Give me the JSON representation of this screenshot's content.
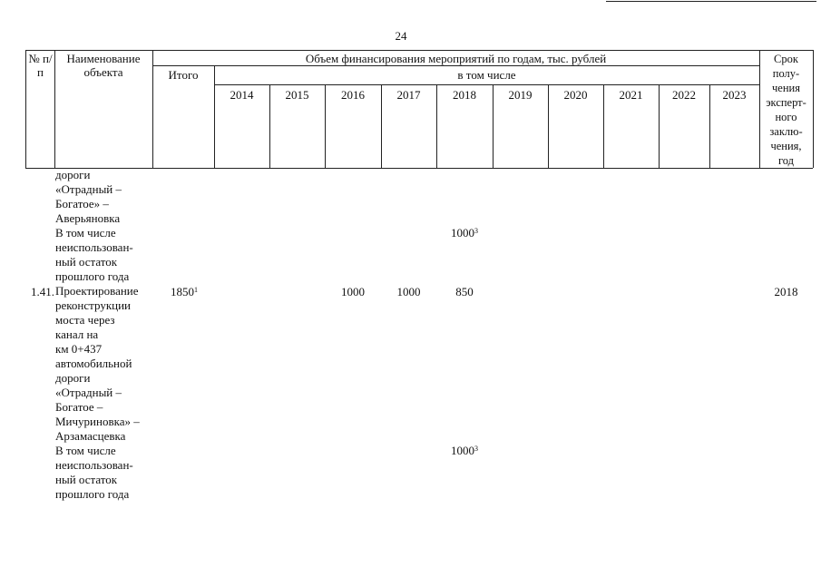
{
  "page_number": "24",
  "header": {
    "no": "№ п/п",
    "name": "Наименование объекта",
    "funding": "Объем финансирования мероприятий по годам, тыс. рублей",
    "total": "Итого",
    "including": "в том числе",
    "years": [
      "2014",
      "2015",
      "2016",
      "2017",
      "2018",
      "2019",
      "2020",
      "2021",
      "2022",
      "2023"
    ],
    "deadline_lines": [
      "Срок",
      "полу-",
      "чения",
      "эксперт-",
      "ного",
      "заклю-",
      "чения,",
      "год"
    ]
  },
  "body": {
    "lines": [
      "дороги",
      "«Отрадный –",
      "Богатое» –",
      "Аверьяновка",
      "В том числе",
      "неиспользован-",
      "ный остаток",
      "прошлого года",
      "Проектирование",
      "реконструкции",
      "моста через",
      "канал на",
      "км 0+437",
      "автомобильной",
      "дороги",
      "«Отрадный –",
      "Богатое –",
      "Мичуриновка» –",
      "Арзамасцевка",
      "В том числе",
      "неиспользован-",
      "ный остаток",
      "прошлого года"
    ],
    "prev_residual_1": {
      "value_2018": "1000",
      "footnote": "3"
    },
    "item_141": {
      "number": "1.41.",
      "total": "1850",
      "total_footnote": "1",
      "value_2016": "1000",
      "value_2017": "1000",
      "value_2018": "850",
      "deadline": "2018"
    },
    "prev_residual_2": {
      "value_2018": "1000",
      "footnote": "3"
    }
  }
}
